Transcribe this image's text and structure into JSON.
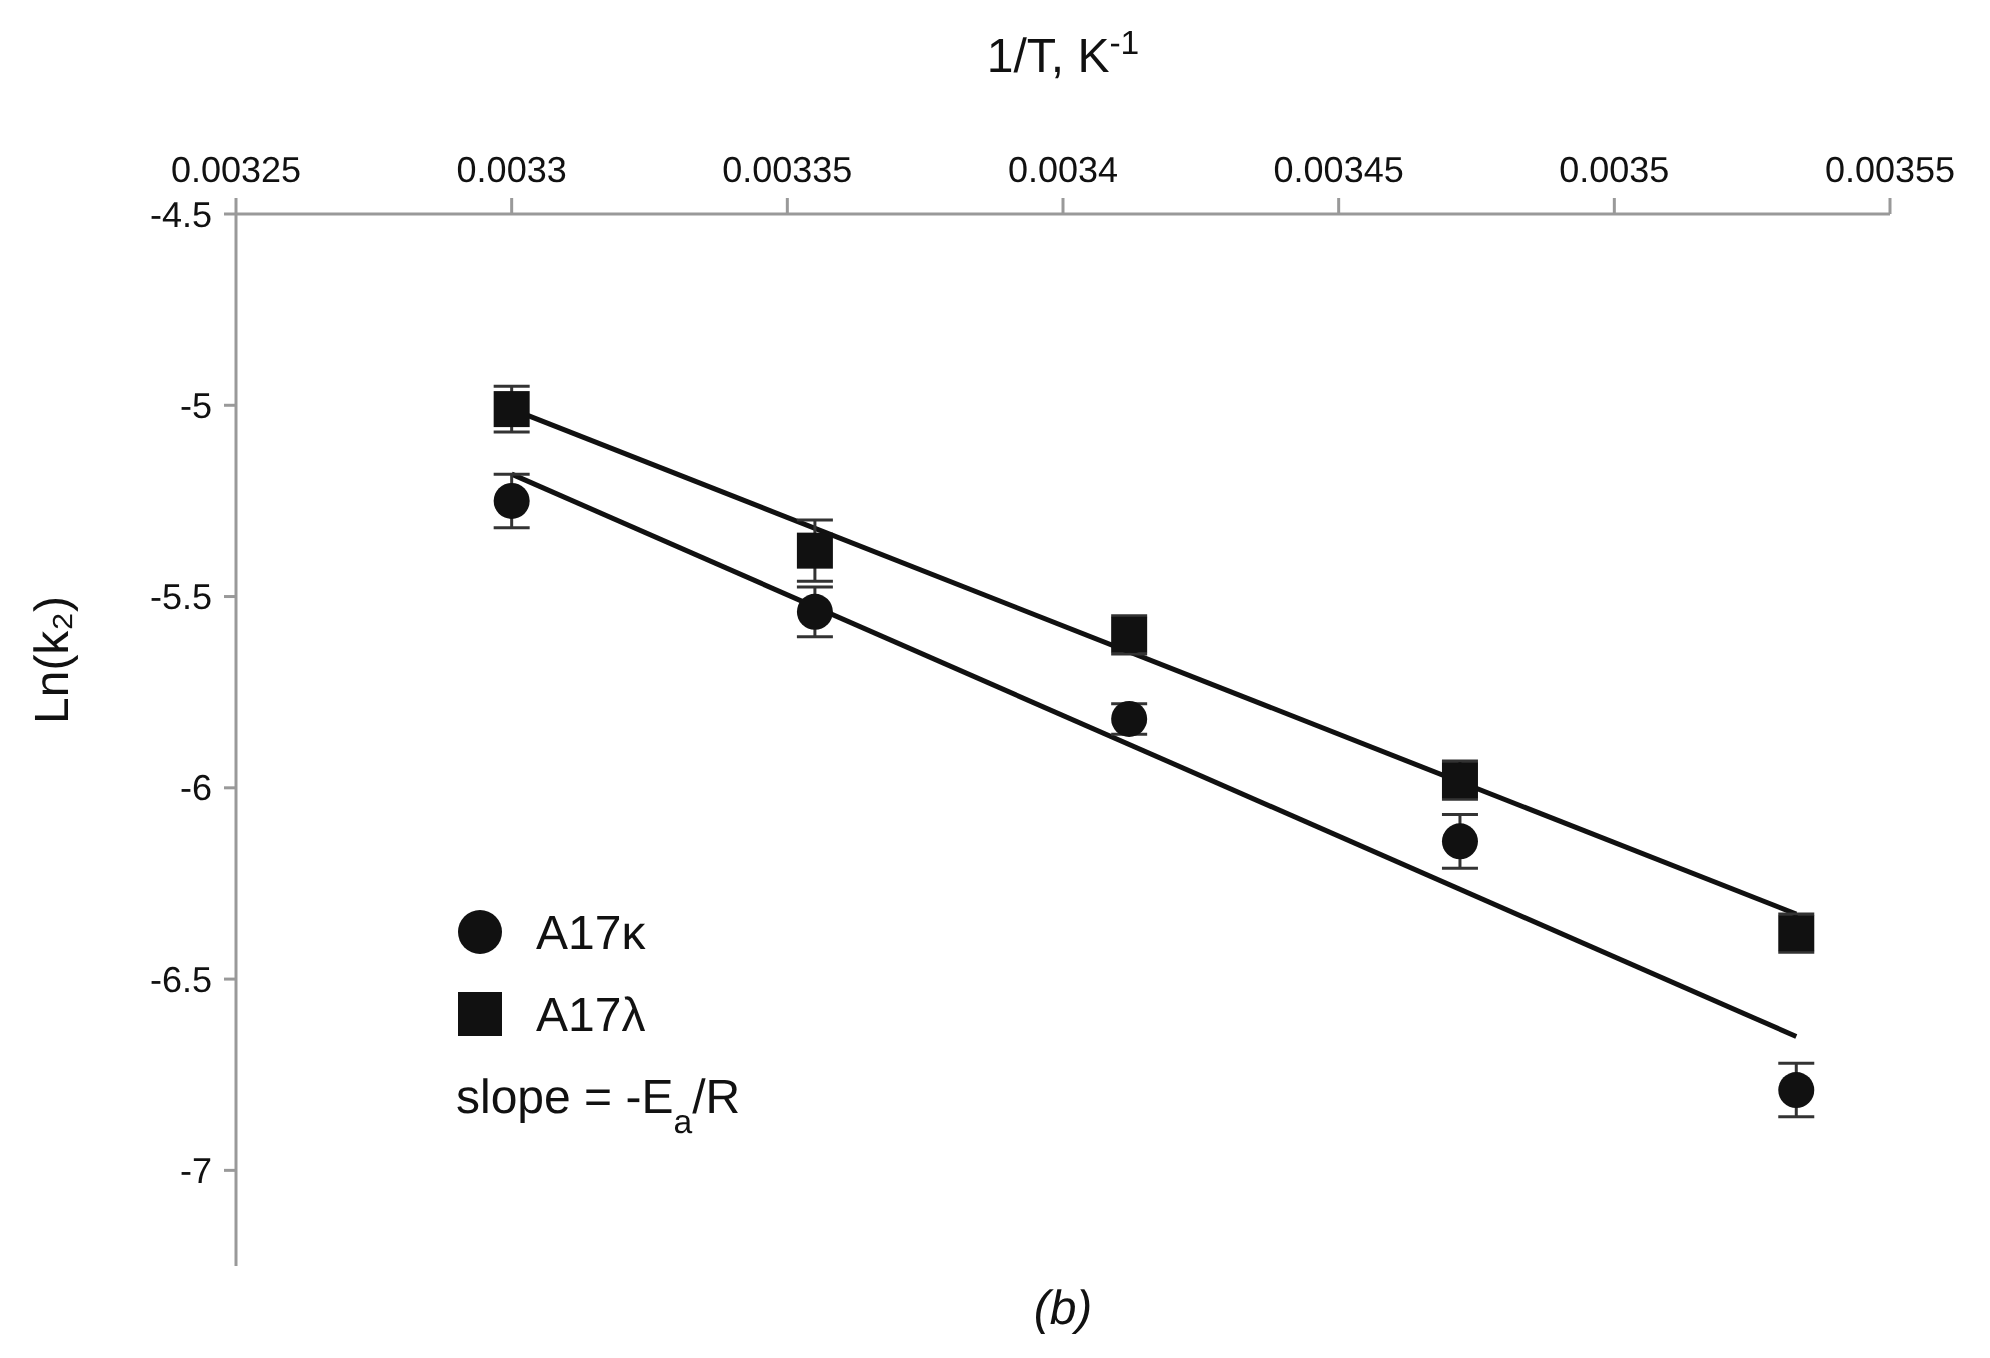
{
  "chart_data": {
    "type": "scatter",
    "xlabel": "1/T, K$^{-1}$",
    "ylabel": "Ln(k₂)",
    "xlim": [
      0.00325,
      0.00355
    ],
    "xticks": [
      0.00325,
      0.0033,
      0.00335,
      0.0034,
      0.00345,
      0.0035,
      0.00355
    ],
    "ylim": [
      -7.25,
      -4.5
    ],
    "yticks": [
      -4.5,
      -5,
      -5.5,
      -6,
      -6.5,
      -7
    ],
    "grid": false,
    "legend": "bottom left",
    "annotations": [
      "slope = -E$_{a}$/R",
      "(b)"
    ],
    "series": [
      {
        "name": "A17κ",
        "marker": "circle",
        "color": "#111111",
        "x": [
          0.0033,
          0.003355,
          0.003412,
          0.003472,
          0.003533
        ],
        "values": [
          -5.25,
          -5.54,
          -5.82,
          -6.14,
          -6.79
        ],
        "errors": [
          0.07,
          0.065,
          0.04,
          0.07,
          0.07
        ]
      },
      {
        "name": "A17λ",
        "marker": "square",
        "color": "#111111",
        "x": [
          0.0033,
          0.003355,
          0.003412,
          0.003472,
          0.003533
        ],
        "values": [
          -5.01,
          -5.38,
          -5.6,
          -5.98,
          -6.38
        ],
        "errors": [
          0.06,
          0.08,
          0.05,
          0.05,
          0.05
        ]
      },
      {
        "type": "line",
        "color": "#111111",
        "x": [
          0.0033,
          0.003533
        ],
        "values": [
          -5.18,
          -6.65
        ]
      },
      {
        "type": "line",
        "color": "#111111",
        "x": [
          0.0033,
          0.003533
        ],
        "values": [
          -5.01,
          -6.33
        ]
      }
    ]
  }
}
